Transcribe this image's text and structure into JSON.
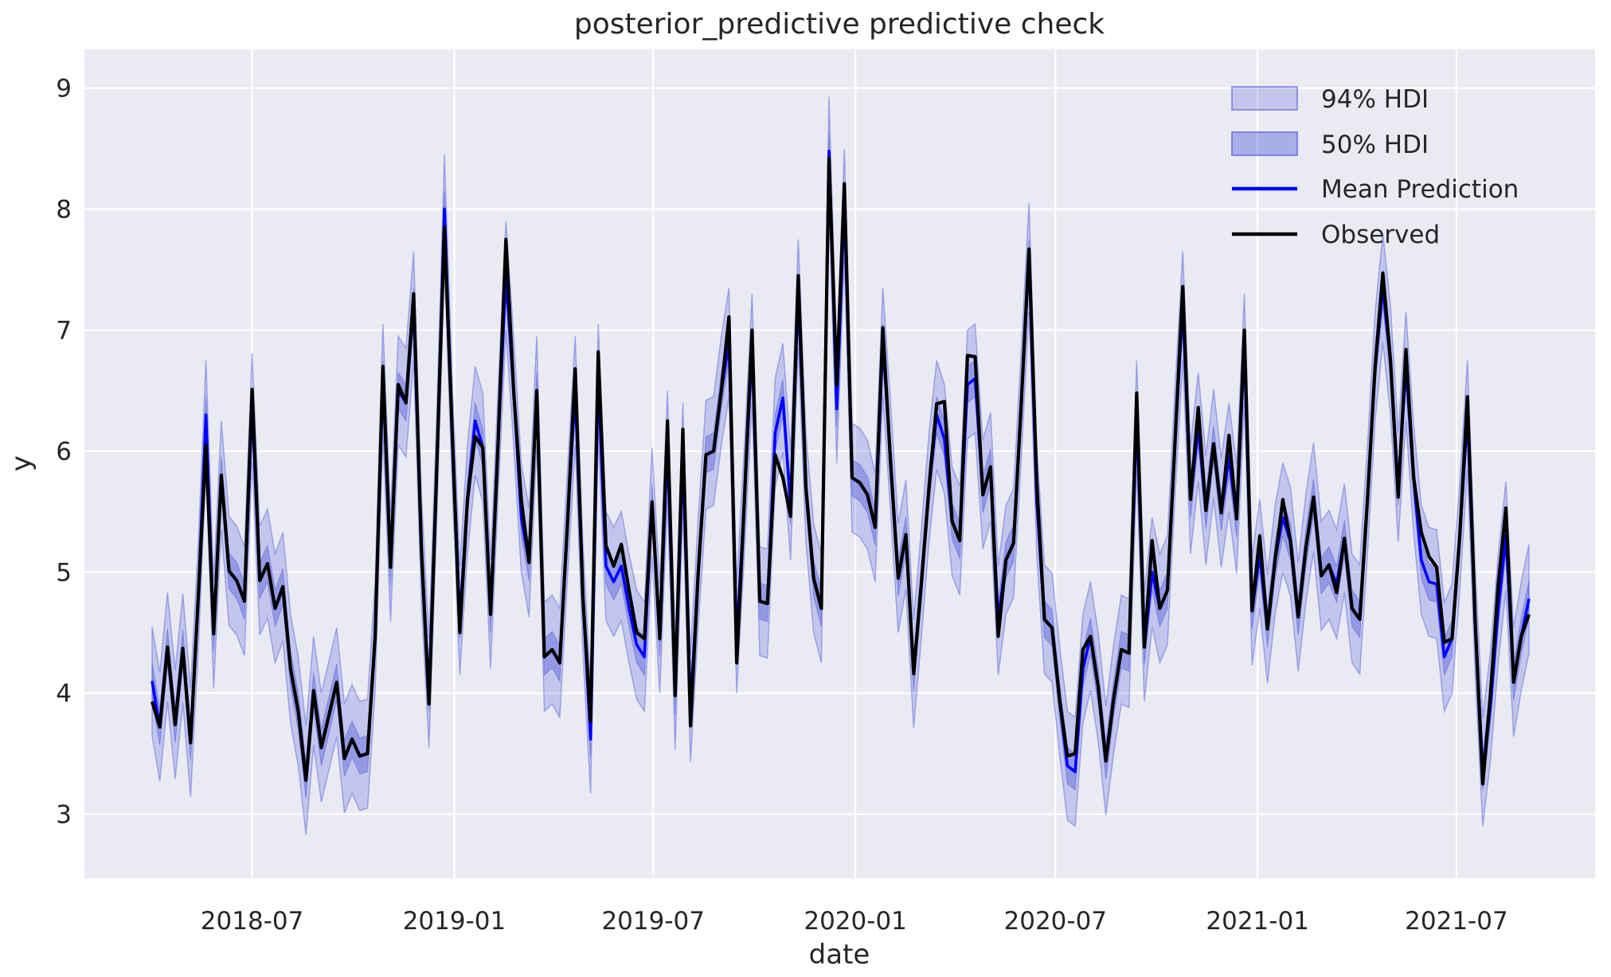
{
  "figure": {
    "background": "#ffffff",
    "axes_background": "#eaeaf2",
    "grid_color": "#ffffff",
    "text_color": "#262626"
  },
  "legend": {
    "items": [
      {
        "label": "94% HDI",
        "swatch": "patch-light-blue"
      },
      {
        "label": "50% HDI",
        "swatch": "patch-medium-blue"
      },
      {
        "label": "Mean Prediction",
        "swatch": "blue-line"
      },
      {
        "label": "Observed",
        "swatch": "black-line"
      }
    ]
  },
  "chart_data": {
    "type": "line",
    "title": "posterior_predictive predictive check",
    "xlabel": "date",
    "ylabel": "y",
    "grid": true,
    "legend_position": "upper right",
    "x_start_date": "2018-04-01",
    "x_step_days": 7,
    "n_points": 180,
    "ylim": [
      2.47,
      9.32
    ],
    "y_ticks": [
      3,
      4,
      5,
      6,
      7,
      8,
      9
    ],
    "x_ticks": [
      {
        "label": "2018-07",
        "day": 91
      },
      {
        "label": "2019-01",
        "day": 275
      },
      {
        "label": "2019-07",
        "day": 456
      },
      {
        "label": "2020-01",
        "day": 640
      },
      {
        "label": "2020-07",
        "day": 822
      },
      {
        "label": "2021-01",
        "day": 1006
      },
      {
        "label": "2021-07",
        "day": 1187
      }
    ],
    "bands": [
      {
        "name": "94% HDI",
        "around": "Mean Prediction",
        "halfwidth": 0.45,
        "color": "#505adc",
        "opacity": 0.25
      },
      {
        "name": "50% HDI",
        "around": "Mean Prediction",
        "halfwidth": 0.15,
        "color": "#505adc",
        "opacity": 0.42
      }
    ],
    "series": [
      {
        "name": "Mean Prediction",
        "color": "#0000ff",
        "values": [
          4.1,
          3.72,
          4.38,
          3.74,
          4.37,
          3.59,
          4.8,
          6.3,
          4.49,
          5.8,
          5.01,
          4.93,
          4.76,
          6.36,
          4.93,
          5.07,
          4.7,
          4.88,
          4.2,
          3.85,
          3.28,
          4.02,
          3.55,
          3.82,
          4.09,
          3.46,
          3.62,
          3.48,
          3.5,
          4.47,
          6.6,
          5.04,
          6.5,
          6.4,
          7.2,
          5.2,
          4.0,
          5.85,
          8.0,
          6.18,
          4.6,
          5.6,
          6.25,
          6.03,
          4.65,
          6.1,
          7.45,
          6.5,
          5.45,
          5.08,
          6.5,
          4.3,
          4.36,
          4.25,
          5.4,
          6.5,
          4.8,
          3.62,
          6.6,
          5.05,
          4.92,
          5.05,
          4.7,
          4.4,
          4.3,
          5.58,
          4.45,
          6.05,
          3.98,
          5.95,
          3.88,
          5.0,
          5.97,
          6.0,
          6.5,
          6.9,
          4.45,
          5.6,
          6.85,
          4.76,
          4.74,
          6.15,
          6.44,
          5.55,
          7.3,
          5.7,
          4.95,
          4.7,
          8.48,
          6.35,
          8.05,
          5.78,
          5.74,
          5.64,
          5.37,
          6.9,
          5.95,
          4.95,
          5.31,
          4.16,
          4.9,
          5.7,
          6.3,
          6.1,
          5.42,
          5.26,
          6.55,
          6.6,
          5.64,
          5.87,
          4.6,
          5.1,
          5.24,
          6.4,
          7.6,
          5.6,
          4.61,
          4.54,
          3.93,
          3.4,
          3.35,
          4.2,
          4.47,
          4.05,
          3.44,
          3.95,
          4.36,
          4.33,
          6.3,
          4.38,
          5.0,
          4.7,
          4.85,
          6.1,
          7.2,
          5.6,
          6.2,
          5.51,
          6.06,
          5.49,
          5.95,
          5.44,
          6.85,
          4.68,
          5.15,
          4.53,
          5.1,
          5.45,
          5.25,
          4.63,
          5.2,
          5.62,
          4.97,
          5.06,
          4.9,
          5.28,
          4.7,
          4.61,
          5.6,
          6.7,
          7.35,
          6.75,
          5.7,
          6.7,
          5.78,
          5.1,
          4.92,
          4.9,
          4.3,
          4.45,
          5.3,
          6.3,
          4.6,
          3.35,
          3.9,
          4.7,
          5.3,
          4.09,
          4.47,
          4.78
        ]
      },
      {
        "name": "Observed",
        "color": "#000000",
        "values": [
          3.93,
          3.72,
          4.38,
          3.74,
          4.37,
          3.59,
          4.8,
          6.05,
          4.49,
          5.8,
          5.01,
          4.93,
          4.76,
          6.51,
          4.93,
          5.07,
          4.7,
          4.88,
          4.2,
          3.85,
          3.28,
          4.02,
          3.55,
          3.82,
          4.09,
          3.46,
          3.62,
          3.48,
          3.5,
          4.47,
          6.7,
          5.04,
          6.55,
          6.4,
          7.3,
          5.2,
          3.91,
          5.85,
          7.85,
          6.18,
          4.5,
          5.6,
          6.12,
          6.03,
          4.65,
          6.1,
          7.75,
          6.5,
          5.6,
          5.08,
          6.5,
          4.3,
          4.36,
          4.25,
          5.4,
          6.68,
          4.8,
          3.77,
          6.82,
          5.22,
          5.05,
          5.23,
          4.85,
          4.5,
          4.45,
          5.58,
          4.45,
          6.25,
          3.98,
          6.18,
          3.73,
          5.0,
          5.97,
          6.0,
          6.5,
          7.11,
          4.25,
          5.6,
          7.0,
          4.76,
          4.74,
          5.97,
          5.78,
          5.46,
          7.45,
          5.7,
          4.95,
          4.7,
          8.42,
          6.55,
          8.21,
          5.78,
          5.74,
          5.64,
          5.37,
          7.02,
          5.9,
          4.95,
          5.31,
          4.16,
          4.9,
          5.7,
          6.39,
          6.41,
          5.42,
          5.26,
          6.79,
          6.78,
          5.64,
          5.87,
          4.47,
          5.1,
          5.24,
          6.4,
          7.67,
          5.75,
          4.61,
          4.54,
          3.93,
          3.48,
          3.5,
          4.36,
          4.47,
          4.05,
          3.44,
          3.95,
          4.36,
          4.33,
          6.48,
          4.38,
          5.26,
          4.7,
          4.85,
          6.1,
          7.36,
          5.6,
          6.36,
          5.51,
          6.06,
          5.49,
          6.13,
          5.44,
          7.0,
          4.68,
          5.3,
          4.53,
          5.1,
          5.6,
          5.25,
          4.63,
          5.2,
          5.62,
          4.97,
          5.06,
          4.83,
          5.28,
          4.7,
          4.61,
          5.6,
          6.7,
          7.47,
          6.75,
          5.62,
          6.84,
          5.78,
          5.33,
          5.13,
          5.04,
          4.42,
          4.45,
          5.3,
          6.45,
          4.6,
          3.25,
          4.0,
          4.9,
          5.53,
          4.09,
          4.47,
          4.65
        ]
      }
    ]
  }
}
